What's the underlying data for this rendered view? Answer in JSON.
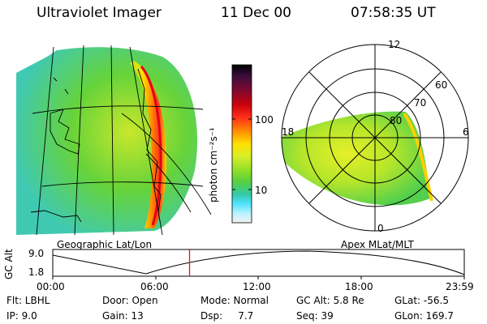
{
  "header": {
    "instrument": "Ultraviolet Imager",
    "date": "11 Dec 00",
    "time": "07:58:35 UT"
  },
  "colorbar": {
    "unit_label": "photon cm⁻²s⁻¹",
    "ticks": [
      "100",
      "10"
    ],
    "colors": [
      "#000000",
      "#3a0d3a",
      "#7d0a2e",
      "#c7000c",
      "#ff2c1a",
      "#ff8c00",
      "#ffe000",
      "#d7ee2a",
      "#97e027",
      "#57d03e",
      "#35c9a8",
      "#4ee3ff",
      "#b8f2ff",
      "#f2f2f2"
    ]
  },
  "geo_panel": {
    "label": "Geographic Lat/Lon"
  },
  "apex_panel": {
    "label": "Apex MLat/MLT",
    "mlt_labels": [
      "12",
      "18",
      "6",
      "0"
    ],
    "lat_labels": [
      "60",
      "70",
      "80"
    ]
  },
  "timeline": {
    "ylabel": "GC Alt",
    "y_ticks": [
      "9.0",
      "1.8"
    ],
    "x_ticks": [
      "00:00",
      "06:00",
      "12:00",
      "18:00",
      "23:59"
    ],
    "marker_time": "07:58",
    "marker_fraction": 0.3324
  },
  "footer": {
    "flt": "Flt: LBHL",
    "door": "Door: Open",
    "mode": "Mode: Normal",
    "gc_alt": "GC Alt: 5.8 Re",
    "glat": "GLat: -56.5",
    "ip": "IP: 9.0",
    "gain": "Gain: 13",
    "dsp": "Dsp:     7.7",
    "seq": "Seq: 39",
    "glon": "GLon: 169.7"
  }
}
